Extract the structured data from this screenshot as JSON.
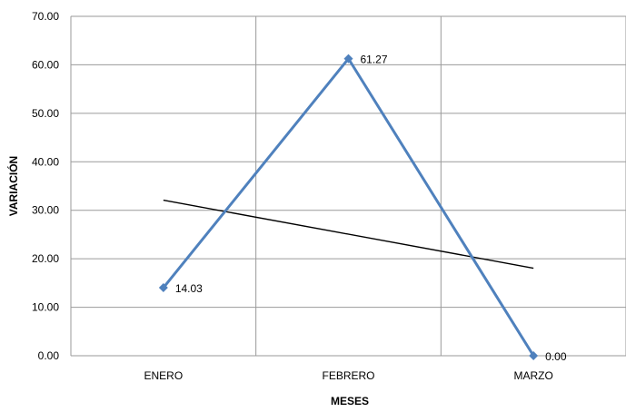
{
  "chart_data": {
    "type": "line",
    "title": "",
    "xlabel": "MESES",
    "ylabel": "VARIACIÓN",
    "categories": [
      "ENERO",
      "FEBRERO",
      "MARZO"
    ],
    "series": [
      {
        "values": [
          14.03,
          61.27,
          0.0
        ],
        "data_labels": [
          "14.03",
          "61.27",
          "0.00"
        ],
        "color": "#4F81BD",
        "marker": "diamond"
      }
    ],
    "trendline": {
      "type": "linear",
      "color": "#000000",
      "values": [
        32.08,
        25.1,
        18.06
      ]
    },
    "ylim": [
      0,
      70
    ],
    "y_ticks": [
      0,
      10,
      20,
      30,
      40,
      50,
      60,
      70
    ],
    "y_tick_labels": [
      "0.00",
      "10.00",
      "20.00",
      "30.00",
      "40.00",
      "50.00",
      "60.00",
      "70.00"
    ],
    "grid": {
      "horizontal": true,
      "vertical": true,
      "color": "#9a9a9a"
    },
    "legend": "none"
  }
}
